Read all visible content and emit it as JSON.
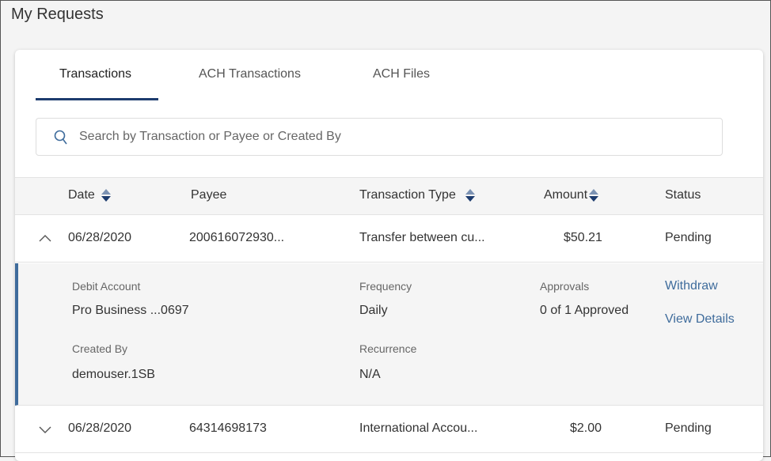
{
  "page": {
    "title": "My Requests"
  },
  "tabs": [
    {
      "label": "Transactions"
    },
    {
      "label": "ACH Transactions"
    },
    {
      "label": "ACH Files"
    }
  ],
  "search": {
    "placeholder": "Search by Transaction or Payee or Created By",
    "value": ""
  },
  "table": {
    "columns": [
      "Date",
      "Payee",
      "Transaction Type",
      "Amount",
      "Status"
    ],
    "rows": [
      {
        "date": "06/28/2020",
        "payee": "200616072930...",
        "type": "Transfer between cu...",
        "amount": "$50.21",
        "status": "Pending",
        "expanded": true,
        "details": {
          "debit_label": "Debit Account",
          "debit_value": "Pro Business ...0697",
          "created_label": "Created By",
          "created_value": "demouser.1SB",
          "frequency_label": "Frequency",
          "frequency_value": "Daily",
          "recurrence_label": "Recurrence",
          "recurrence_value": "N/A",
          "approvals_label": "Approvals",
          "approvals_value": "0 of 1 Approved",
          "withdraw": "Withdraw",
          "view_details": "View Details"
        }
      },
      {
        "date": "06/28/2020",
        "payee": "64314698173",
        "type": "International Accou...",
        "amount": "$2.00",
        "status": "Pending",
        "expanded": false
      }
    ]
  },
  "colors": {
    "accent": "#1d3c6e",
    "link": "#3f6c9c"
  }
}
